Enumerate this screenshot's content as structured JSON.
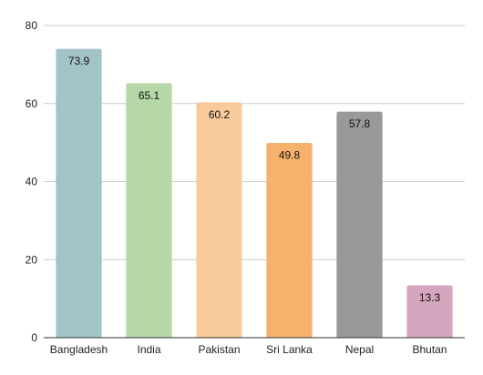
{
  "chart_data": {
    "type": "bar",
    "title": "",
    "xlabel": "",
    "ylabel": "",
    "categories": [
      "Bangladesh",
      "India",
      "Pakistan",
      "Sri Lanka",
      "Nepal",
      "Bhutan"
    ],
    "values": [
      73.9,
      65.1,
      60.2,
      49.8,
      57.8,
      13.3
    ],
    "data_labels": [
      "73.9",
      "65.1",
      "60.2",
      "49.8",
      "57.8",
      "13.3"
    ],
    "colors": [
      "#a2c4c9",
      "#b6d7a8",
      "#f9cb9c",
      "#f6b26b",
      "#999999",
      "#d5a6bd"
    ],
    "ylim": [
      0,
      80
    ],
    "yticks": [
      0,
      20,
      40,
      60,
      80
    ],
    "ytick_labels": [
      "0",
      "20",
      "40",
      "60",
      "80"
    ],
    "grid": true,
    "legend": "none"
  }
}
